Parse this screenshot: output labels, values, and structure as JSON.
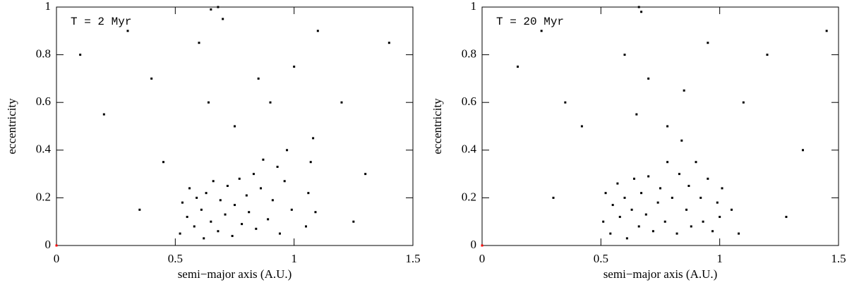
{
  "chart_data": [
    {
      "type": "scatter",
      "annotation": "T = 2 Myr",
      "xlabel": "semi−major axis (A.U.)",
      "ylabel": "eccentricity",
      "xlim": [
        0,
        1.5
      ],
      "ylim": [
        0,
        1
      ],
      "xticks": [
        0,
        0.5,
        1,
        1.5
      ],
      "yticks": [
        0,
        0.2,
        0.4,
        0.6,
        0.8,
        1
      ],
      "series": [
        {
          "color": "#000000",
          "x": [
            0.52,
            0.53,
            0.55,
            0.56,
            0.58,
            0.59,
            0.61,
            0.62,
            0.63,
            0.65,
            0.66,
            0.68,
            0.69,
            0.71,
            0.72,
            0.74,
            0.75,
            0.77,
            0.78,
            0.8,
            0.81,
            0.83,
            0.84,
            0.86,
            0.87,
            0.89,
            0.91,
            0.93,
            0.94,
            0.96,
            0.97,
            0.99,
            1.05,
            1.06,
            1.07,
            1.08,
            1.09,
            0.1,
            0.2,
            0.3,
            0.4,
            0.45,
            0.6,
            0.64,
            0.7,
            0.75,
            0.85,
            0.9,
            1.0,
            1.1,
            1.2,
            1.3,
            1.4,
            0.35,
            1.25,
            0.65,
            0.68
          ],
          "y": [
            0.05,
            0.18,
            0.12,
            0.24,
            0.08,
            0.2,
            0.15,
            0.03,
            0.22,
            0.1,
            0.27,
            0.06,
            0.19,
            0.13,
            0.25,
            0.04,
            0.17,
            0.28,
            0.09,
            0.21,
            0.14,
            0.3,
            0.07,
            0.24,
            0.36,
            0.11,
            0.19,
            0.33,
            0.05,
            0.27,
            0.4,
            0.15,
            0.08,
            0.22,
            0.35,
            0.45,
            0.14,
            0.8,
            0.55,
            0.9,
            0.7,
            0.35,
            0.85,
            0.6,
            0.95,
            0.5,
            0.7,
            0.6,
            0.75,
            0.9,
            0.6,
            0.3,
            0.85,
            0.15,
            0.1,
            0.99,
            1.0
          ]
        },
        {
          "color": "#ff0000",
          "x": [
            0
          ],
          "y": [
            0
          ]
        }
      ]
    },
    {
      "type": "scatter",
      "annotation": "T = 20 Myr",
      "xlabel": "semi−major axis (A.U.)",
      "ylabel": "eccentricity",
      "xlim": [
        0,
        1.5
      ],
      "ylim": [
        0,
        1
      ],
      "xticks": [
        0,
        0.5,
        1,
        1.5
      ],
      "yticks": [
        0,
        0.2,
        0.4,
        0.6,
        0.8,
        1
      ],
      "series": [
        {
          "color": "#000000",
          "x": [
            0.51,
            0.52,
            0.54,
            0.55,
            0.57,
            0.58,
            0.6,
            0.61,
            0.63,
            0.64,
            0.66,
            0.67,
            0.69,
            0.7,
            0.72,
            0.74,
            0.75,
            0.77,
            0.78,
            0.8,
            0.82,
            0.83,
            0.84,
            0.86,
            0.87,
            0.88,
            0.9,
            0.92,
            0.93,
            0.95,
            0.97,
            0.99,
            1.0,
            1.01,
            1.05,
            1.08,
            0.15,
            0.25,
            0.35,
            0.42,
            0.6,
            0.65,
            0.67,
            0.7,
            0.78,
            0.85,
            0.95,
            1.1,
            1.2,
            1.35,
            1.45,
            0.3,
            1.28,
            0.66
          ],
          "y": [
            0.1,
            0.22,
            0.05,
            0.17,
            0.26,
            0.12,
            0.2,
            0.03,
            0.15,
            0.28,
            0.08,
            0.22,
            0.13,
            0.29,
            0.06,
            0.18,
            0.24,
            0.1,
            0.35,
            0.2,
            0.05,
            0.3,
            0.44,
            0.15,
            0.25,
            0.08,
            0.35,
            0.2,
            0.1,
            0.28,
            0.06,
            0.18,
            0.12,
            0.24,
            0.15,
            0.05,
            0.75,
            0.9,
            0.6,
            0.5,
            0.8,
            0.55,
            0.98,
            0.7,
            0.5,
            0.65,
            0.85,
            0.6,
            0.8,
            0.4,
            0.9,
            0.2,
            0.12,
            1.0
          ]
        },
        {
          "color": "#ff0000",
          "x": [
            0
          ],
          "y": [
            0
          ]
        }
      ]
    }
  ]
}
